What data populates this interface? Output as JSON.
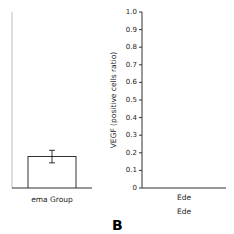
{
  "chart_data": [
    {
      "type": "bar",
      "categories": [
        null
      ],
      "values": [
        0.05
      ],
      "errors": [
        0.01
      ],
      "color": "white",
      "ylim": [
        0,
        0.28
      ],
      "xlabel": "ema Group",
      "tick_labels": false,
      "grid": false
    },
    {
      "type": "bar",
      "categories": [
        "Ede"
      ],
      "values": [
        null
      ],
      "ylim": [
        0,
        1.0
      ],
      "yticks": [
        0,
        0.1,
        0.2,
        0.3,
        0.4,
        0.5,
        0.6,
        0.7,
        0.8,
        0.9,
        {
          "value": 1.0,
          "label": "1.0"
        }
      ],
      "ylabel": "VEGF (positive cells ratio)",
      "xlabel": "Ede",
      "annotations": [
        "B"
      ],
      "grid": false
    }
  ]
}
